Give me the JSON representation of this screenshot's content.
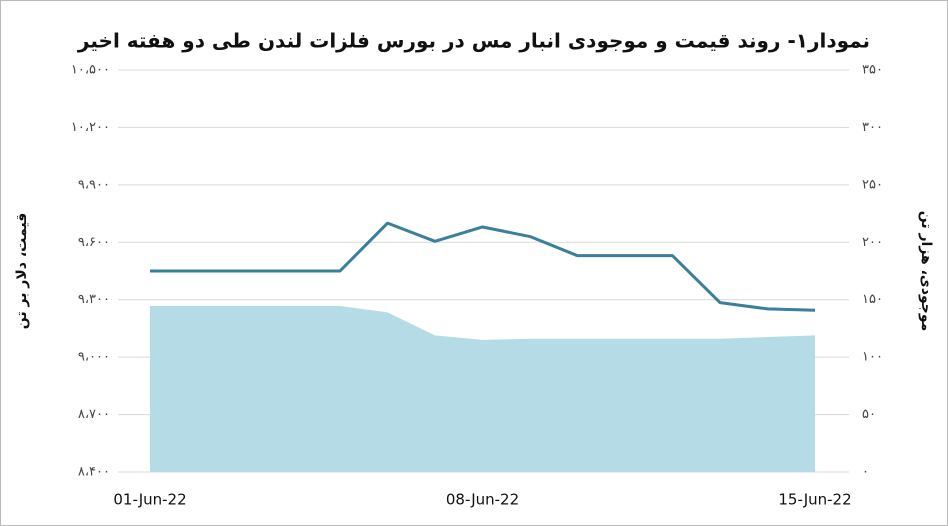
{
  "chart_data": {
    "type": "line-area",
    "title": "نمودار۱- روند قیمت و موجودی انبار مس در بورس فلزات لندن طی دو هفته اخیر",
    "ylabel": "قیمت، دلار بر تن",
    "y2label": "موجودی، هزار تن",
    "categories": [
      "01-Jun-22",
      null,
      null,
      null,
      null,
      null,
      null,
      "08-Jun-22",
      null,
      null,
      null,
      null,
      null,
      null,
      "15-Jun-22"
    ],
    "series": [
      {
        "type": "area",
        "color": "#b5dce6",
        "axis": "y2",
        "values": [
          144.5,
          144.5,
          144.5,
          144.5,
          144.5,
          139,
          119,
          115,
          116,
          116,
          116,
          116,
          116,
          117.5,
          119
        ]
      },
      {
        "type": "line",
        "color": "#3a7f9b",
        "values": [
          9450,
          9450,
          9450,
          9450,
          9450,
          9700,
          9605,
          9680,
          9630,
          9530,
          9530,
          9530,
          9285,
          9252,
          9245
        ]
      }
    ],
    "ylim": [
      8400,
      10500
    ],
    "yticks": [
      {
        "value": 8400,
        "label": "۸،۴۰۰"
      },
      {
        "value": 8700,
        "label": "۸،۷۰۰"
      },
      {
        "value": 9000,
        "label": "۹،۰۰۰"
      },
      {
        "value": 9300,
        "label": "۹،۳۰۰"
      },
      {
        "value": 9600,
        "label": "۹،۶۰۰"
      },
      {
        "value": 9900,
        "label": "۹،۹۰۰"
      },
      {
        "value": 10200,
        "label": "۱۰،۲۰۰"
      },
      {
        "value": 10500,
        "label": "۱۰،۵۰۰"
      }
    ],
    "y2lim": [
      0,
      350
    ],
    "y2ticks": [
      {
        "value": 0,
        "label": "۰"
      },
      {
        "value": 50,
        "label": "۵۰"
      },
      {
        "value": 100,
        "label": "۱۰۰"
      },
      {
        "value": 150,
        "label": "۱۵۰"
      },
      {
        "value": 200,
        "label": "۲۰۰"
      },
      {
        "value": 250,
        "label": "۲۵۰"
      },
      {
        "value": 300,
        "label": "۳۰۰"
      },
      {
        "value": 350,
        "label": "۳۵۰"
      }
    ],
    "grid": true
  }
}
